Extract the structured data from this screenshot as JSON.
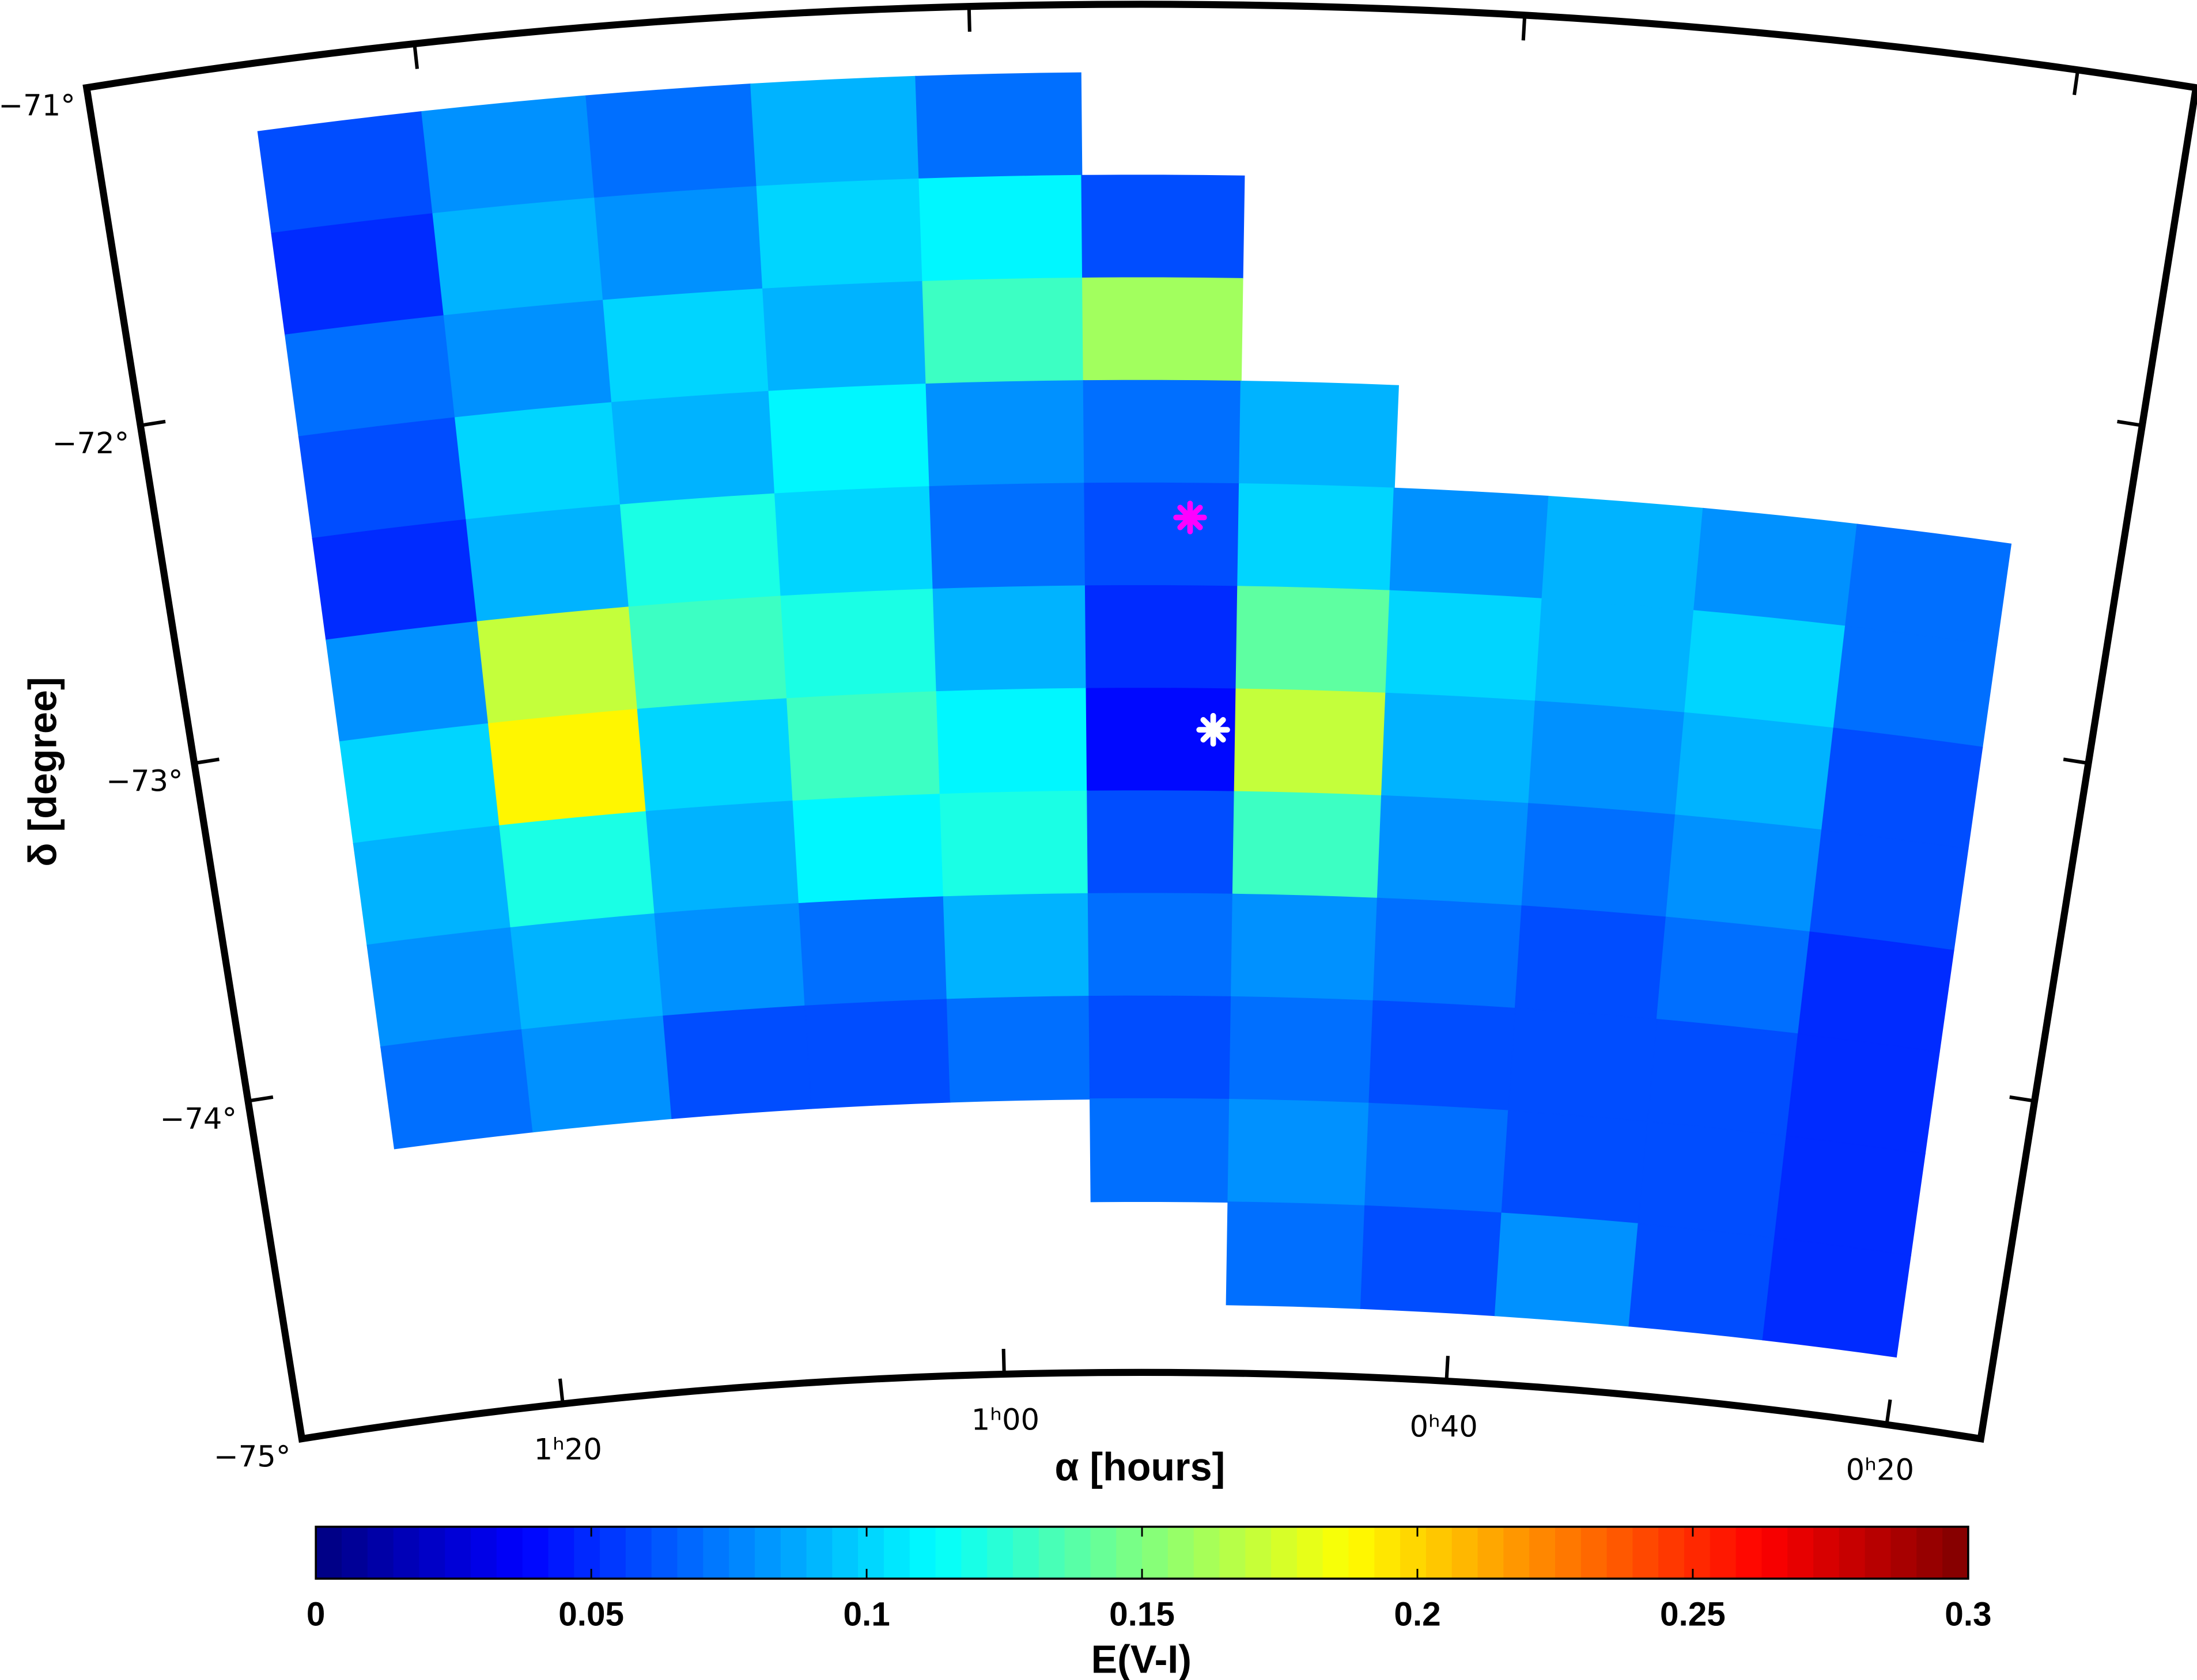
{
  "chart_data": {
    "type": "map",
    "xlabel": "α [hours]",
    "ylabel": "δ [degree]",
    "xlim": [
      91.9,
      15.7
    ],
    "ylim": [
      -75,
      -71
    ],
    "xticks": [
      {
        "value": 80,
        "label": "1ʰ20"
      },
      {
        "value": 60,
        "label": "1ʰ00"
      },
      {
        "value": 40,
        "label": "0ʰ40"
      },
      {
        "value": 20,
        "label": "0ʰ20"
      }
    ],
    "yticks": [
      {
        "value": -71,
        "label": "−71°"
      },
      {
        "value": -72,
        "label": "−72°"
      },
      {
        "value": -73,
        "label": "−73°"
      },
      {
        "value": -74,
        "label": "−74°"
      },
      {
        "value": -75,
        "label": "−75°"
      }
    ],
    "ra_edges": [
      86,
      80,
      74,
      68,
      62,
      56,
      50,
      44,
      38,
      32,
      26,
      20
    ],
    "dec_edges": [
      -71.2,
      -71.5,
      -71.8,
      -72.1,
      -72.4,
      -72.7,
      -73.0,
      -73.3,
      -73.6,
      -73.9,
      -74.2,
      -74.5,
      -74.8
    ],
    "values": [
      [
        0.06,
        0.08,
        0.07,
        0.09,
        0.07,
        null,
        null,
        null,
        null,
        null,
        null
      ],
      [
        0.05,
        0.09,
        0.08,
        0.1,
        0.11,
        0.06,
        null,
        null,
        null,
        null,
        null
      ],
      [
        0.07,
        0.08,
        0.1,
        0.09,
        0.13,
        0.16,
        null,
        null,
        null,
        null,
        null
      ],
      [
        0.06,
        0.1,
        0.09,
        0.11,
        0.08,
        0.07,
        0.09,
        null,
        null,
        null,
        null
      ],
      [
        0.05,
        0.09,
        0.12,
        0.1,
        0.07,
        0.06,
        0.1,
        0.08,
        0.09,
        0.08,
        0.07
      ],
      [
        0.08,
        0.17,
        0.13,
        0.12,
        0.09,
        0.05,
        0.14,
        0.1,
        0.09,
        0.1,
        0.07
      ],
      [
        0.1,
        0.19,
        0.1,
        0.13,
        0.11,
        0.04,
        0.17,
        0.09,
        0.08,
        0.09,
        0.06
      ],
      [
        0.09,
        0.12,
        0.09,
        0.11,
        0.12,
        0.06,
        0.13,
        0.08,
        0.07,
        0.08,
        0.06
      ],
      [
        0.08,
        0.09,
        0.08,
        0.07,
        0.09,
        0.07,
        0.08,
        0.07,
        0.06,
        0.07,
        0.05
      ],
      [
        0.07,
        0.08,
        0.06,
        0.06,
        0.07,
        0.06,
        0.07,
        0.06,
        0.06,
        0.06,
        0.05
      ],
      [
        null,
        null,
        null,
        null,
        null,
        0.07,
        0.08,
        0.07,
        0.06,
        0.06,
        0.05
      ],
      [
        null,
        null,
        null,
        null,
        null,
        null,
        0.07,
        0.06,
        0.08,
        0.06,
        0.05
      ]
    ],
    "colorbar": {
      "label": "E(V-I)",
      "clim": [
        0,
        0.3
      ],
      "ticks": [
        0,
        0.05,
        0.1,
        0.15,
        0.2,
        0.25,
        0.3
      ]
    },
    "markers": [
      {
        "ra": 51.9,
        "dec": -72.5,
        "color": "#ff00ff"
      },
      {
        "ra": 50.9,
        "dec": -73.12,
        "color": "#ffffff"
      }
    ]
  }
}
